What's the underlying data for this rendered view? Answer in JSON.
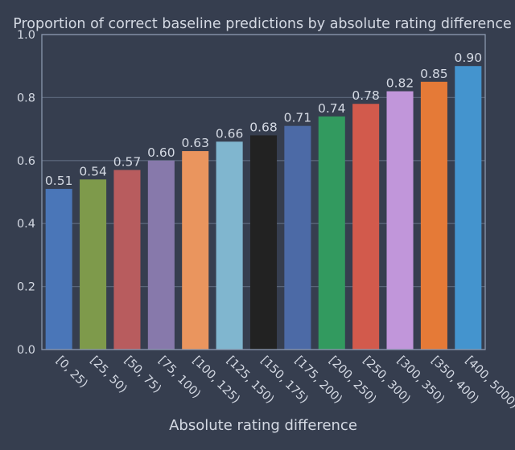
{
  "chart_data": {
    "type": "bar",
    "title": "Proportion of correct baseline predictions by absolute rating difference",
    "xlabel": "Absolute rating difference",
    "ylabel": "",
    "ylim": [
      0.0,
      1.0
    ],
    "yticks": [
      "0.0",
      "0.2",
      "0.4",
      "0.6",
      "0.8",
      "1.0"
    ],
    "grid": "horizontal",
    "categories": [
      "[0, 25)",
      "[25, 50)",
      "[50, 75)",
      "[75, 100)",
      "[100, 125)",
      "[125, 150)",
      "[150, 175)",
      "[175, 200)",
      "[200, 250)",
      "[250, 300)",
      "[300, 350)",
      "[350, 400)",
      "[400, 5000)"
    ],
    "values": [
      0.51,
      0.54,
      0.57,
      0.6,
      0.63,
      0.66,
      0.68,
      0.71,
      0.74,
      0.78,
      0.82,
      0.85,
      0.9
    ],
    "value_labels": [
      "0.51",
      "0.54",
      "0.57",
      "0.60",
      "0.63",
      "0.66",
      "0.68",
      "0.71",
      "0.74",
      "0.78",
      "0.82",
      "0.85",
      "0.90"
    ],
    "colors": [
      "#4a76b8",
      "#7e9a4b",
      "#b85c5e",
      "#8779ab",
      "#ea955e",
      "#80b6cf",
      "#222222",
      "#4c6aa6",
      "#329a5f",
      "#d25a4c",
      "#c196da",
      "#e57a37",
      "#4494ce"
    ],
    "theme": {
      "background": "#363e4f",
      "plot_background": "#363e4f",
      "grid_color": "#596478",
      "frame_color": "#8a97ad",
      "text_color": "#d4d9e3"
    }
  }
}
